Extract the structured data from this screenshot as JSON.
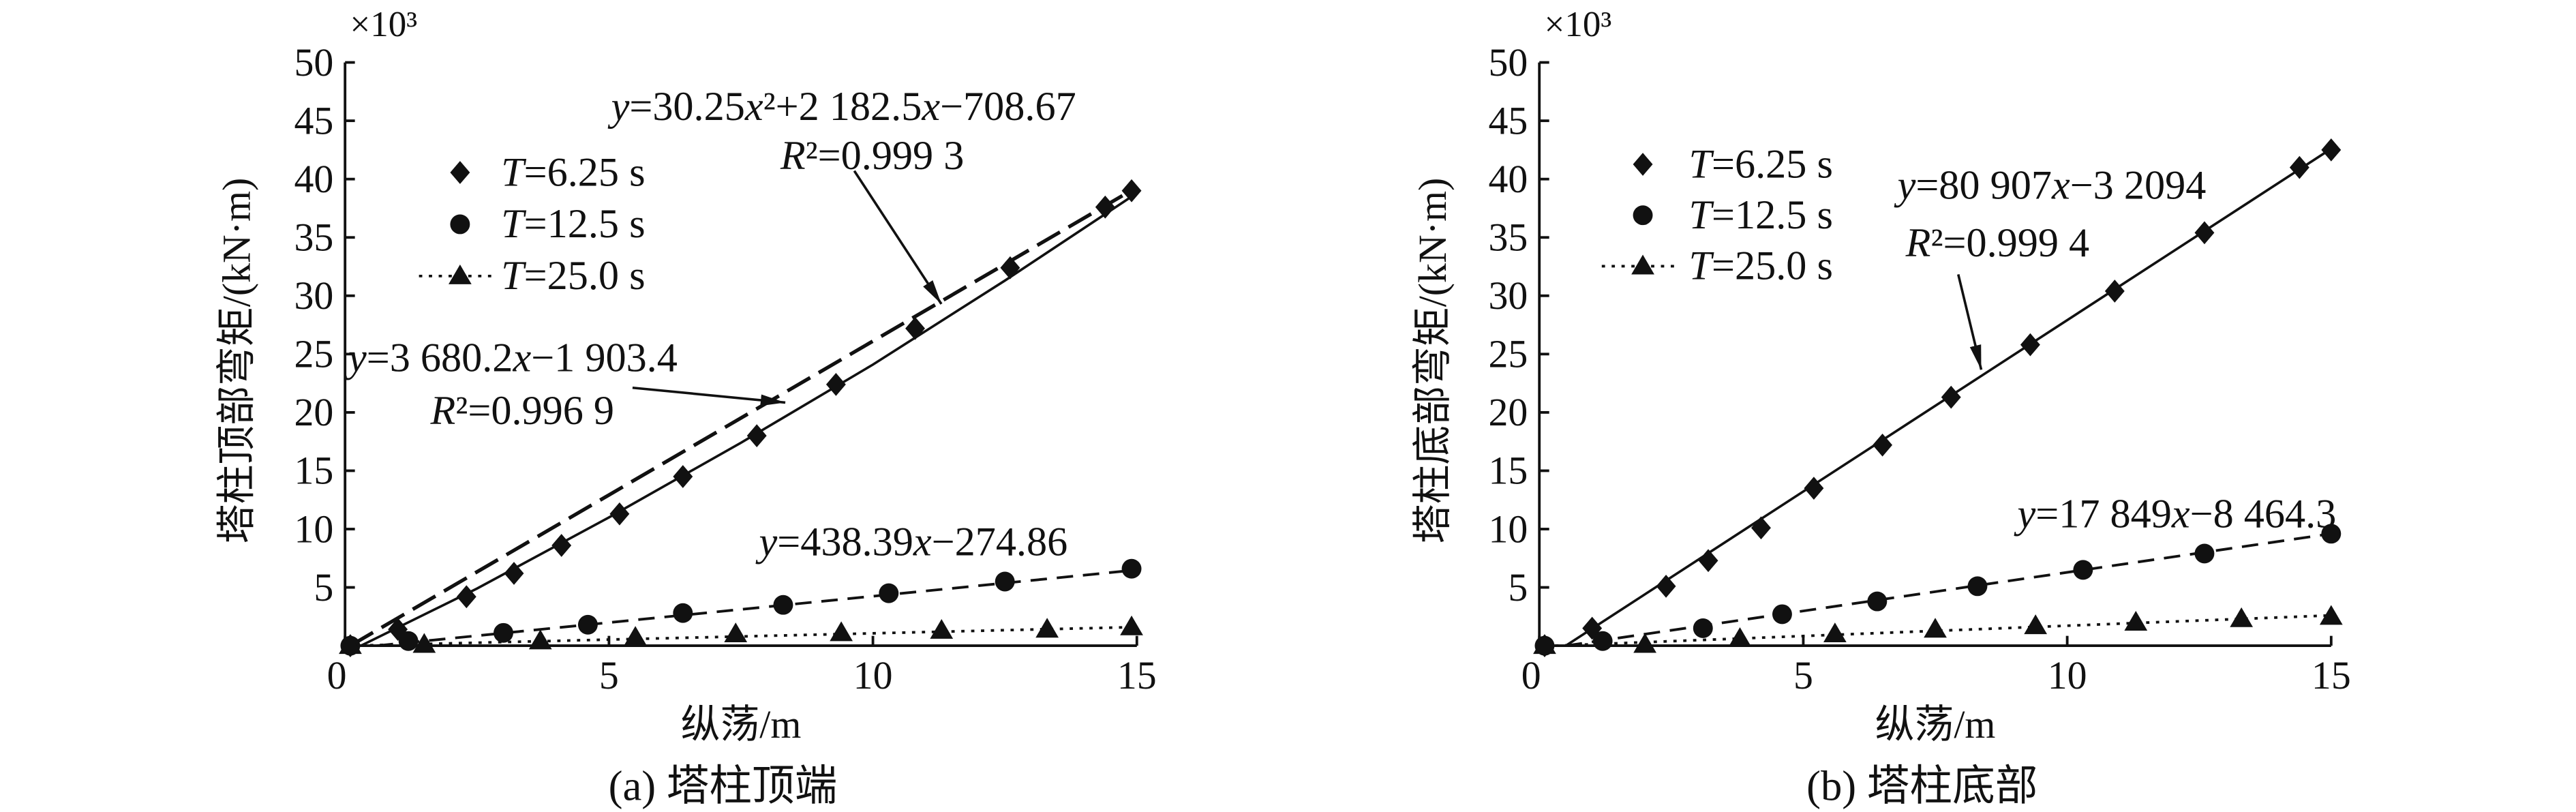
{
  "chart_data": [
    {
      "type": "scatter",
      "caption": "(a) 塔柱顶端",
      "xlabel": "纵荡/m",
      "ylabel": "塔柱顶部弯矩/(kN·m)",
      "yscale_label": "×10³",
      "xlim": [
        0,
        15
      ],
      "ylim": [
        0,
        50
      ],
      "xticks": [
        0,
        5,
        10,
        15
      ],
      "yticks": [
        5,
        10,
        15,
        20,
        25,
        30,
        35,
        40,
        45,
        50
      ],
      "grid": false,
      "legend": "top-left",
      "series": [
        {
          "name": "T=6.25 s",
          "x": [
            0.1,
            1.0,
            2.3,
            3.2,
            4.1,
            5.2,
            6.4,
            7.8,
            9.3,
            10.8,
            12.6,
            14.4,
            14.9
          ],
          "y": [
            0.0,
            1.4,
            4.2,
            6.2,
            8.6,
            11.3,
            14.5,
            18.0,
            22.4,
            27.2,
            32.4,
            37.6,
            39.0
          ]
        },
        {
          "name": "T=12.5 s",
          "x": [
            0.1,
            1.2,
            3.0,
            4.6,
            6.4,
            8.3,
            10.3,
            12.5,
            14.9
          ],
          "y": [
            0.0,
            0.4,
            1.1,
            1.8,
            2.8,
            3.5,
            4.5,
            5.5,
            6.6
          ]
        },
        {
          "name": "T=25.0 s",
          "x": [
            0.1,
            1.5,
            3.7,
            5.5,
            7.4,
            9.4,
            11.3,
            13.3,
            14.9
          ],
          "y": [
            0.0,
            0.1,
            0.4,
            0.7,
            1.0,
            1.1,
            1.3,
            1.4,
            1.6
          ]
        }
      ],
      "fit_lines": [
        {
          "x": [
            0.3,
            2.5,
            5,
            7.5,
            10,
            12.5,
            15
          ],
          "y": [
            0.0,
            4.9,
            11.0,
            17.4,
            24.1,
            31.3,
            38.8
          ]
        },
        {
          "x": [
            0.1,
            15
          ],
          "y": [
            0.0,
            39.3
          ]
        },
        {
          "x": [
            0.6,
            15
          ],
          "y": [
            0.0,
            6.5
          ]
        },
        {
          "x": [
            0.1,
            15
          ],
          "y": [
            0.0,
            1.6
          ]
        }
      ],
      "annotations": [
        "y=30.25x²+2 182.5x−708.67",
        "R²=0.999 3",
        "y=3 680.2x−1 903.4",
        "R²=0.996 9",
        "y=438.39x−274.86"
      ]
    },
    {
      "type": "scatter",
      "caption": "(b) 塔柱底部",
      "xlabel": "纵荡/m",
      "ylabel": "塔柱底部弯矩/(kN·m)",
      "yscale_label": "×10³",
      "xlim": [
        0,
        15
      ],
      "ylim": [
        0,
        50
      ],
      "xticks": [
        0,
        5,
        10,
        15
      ],
      "yticks": [
        5,
        10,
        15,
        20,
        25,
        30,
        35,
        40,
        45,
        50
      ],
      "grid": false,
      "legend": "top-left",
      "series": [
        {
          "name": "T=6.25 s",
          "x": [
            0.1,
            1.0,
            2.4,
            3.2,
            4.2,
            5.2,
            6.5,
            7.8,
            9.3,
            10.9,
            12.6,
            14.4,
            15.0
          ],
          "y": [
            0.0,
            1.5,
            5.1,
            7.3,
            10.1,
            13.5,
            17.2,
            21.3,
            25.8,
            30.4,
            35.4,
            41.0,
            42.5
          ]
        },
        {
          "name": "T=12.5 s",
          "x": [
            0.1,
            1.2,
            3.1,
            4.6,
            6.4,
            8.3,
            10.3,
            12.6,
            15.0
          ],
          "y": [
            0.0,
            0.4,
            1.5,
            2.7,
            3.8,
            5.1,
            6.5,
            7.9,
            9.6
          ]
        },
        {
          "name": "T=25.0 s",
          "x": [
            0.1,
            2.0,
            3.8,
            5.6,
            7.5,
            9.4,
            11.3,
            13.3,
            15.0
          ],
          "y": [
            0.0,
            0.1,
            0.6,
            1.0,
            1.4,
            1.7,
            2.0,
            2.3,
            2.5
          ]
        }
      ],
      "fit_lines": [
        {
          "x": [
            0.5,
            15
          ],
          "y": [
            0.0,
            42.6
          ]
        },
        {
          "x": [
            0.5,
            15
          ],
          "y": [
            0.0,
            9.6
          ]
        },
        {
          "x": [
            0.3,
            15
          ],
          "y": [
            0.0,
            2.6
          ]
        }
      ],
      "annotations": [
        "y=80 907x−3 2094",
        "R²=0.999 4",
        "y=17 849x−8 464.3"
      ]
    }
  ]
}
